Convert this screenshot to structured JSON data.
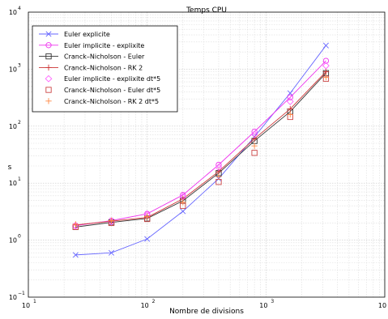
{
  "chart_data": {
    "type": "line",
    "title": "Temps CPU",
    "xlabel": "Nombre de divisions",
    "ylabel": "s",
    "x_scale": "log",
    "y_scale": "log",
    "xlim": [
      10,
      10000
    ],
    "ylim": [
      0.1,
      10000
    ],
    "grid": true,
    "legend_position": "top-left",
    "x_ticks": [
      {
        "base": "10",
        "exp": "1"
      },
      {
        "base": "10",
        "exp": "2"
      },
      {
        "base": "10",
        "exp": "3"
      },
      {
        "base": "10",
        "exp": "4"
      }
    ],
    "y_ticks": [
      {
        "base": "10",
        "exp": "−1"
      },
      {
        "base": "10",
        "exp": "0"
      },
      {
        "base": "10",
        "exp": "1"
      },
      {
        "base": "10",
        "exp": "2"
      },
      {
        "base": "10",
        "exp": "3"
      },
      {
        "base": "10",
        "exp": "4"
      }
    ],
    "x": [
      25,
      50,
      100,
      200,
      400,
      800,
      1600,
      3200
    ],
    "series": [
      {
        "name": "Euler explicite",
        "color": "#6666ff",
        "marker": "x",
        "line": true,
        "values": [
          0.55,
          0.6,
          1.05,
          3.2,
          12,
          65,
          380,
          2600
        ]
      },
      {
        "name": "Euler implicite - explixite",
        "color": "#ee33ee",
        "marker": "circle",
        "line": true,
        "values": [
          1.8,
          2.2,
          2.9,
          6.2,
          21,
          80,
          320,
          1400
        ]
      },
      {
        "name": "Cranck–Nicholson - Euler",
        "color": "#333333",
        "marker": "square",
        "line": true,
        "values": [
          1.7,
          2.05,
          2.4,
          4.9,
          15,
          55,
          180,
          850
        ]
      },
      {
        "name": "Cranck–Nicholson - RK 2",
        "color": "#cc3333",
        "marker": "plus",
        "line": true,
        "values": [
          1.85,
          2.15,
          2.5,
          5.3,
          16,
          60,
          200,
          900
        ]
      },
      {
        "name": "Euler implicite - explixite dt*5",
        "color": "#ff66ff",
        "marker": "diamond",
        "line": false,
        "values": [
          1.75,
          2.1,
          2.8,
          5.8,
          19,
          72,
          270,
          1150
        ]
      },
      {
        "name": "Cranck–Nicholson - Euler dt*5",
        "color": "#cc4444",
        "marker": "square",
        "line": false,
        "values": [
          1.7,
          2.0,
          2.35,
          4.0,
          10.5,
          34,
          145,
          680
        ]
      },
      {
        "name": "Cranck–Nicholson - RK 2 dt*5",
        "color": "#ff8844",
        "marker": "plus",
        "line": false,
        "values": [
          1.9,
          2.2,
          2.6,
          4.6,
          13,
          45,
          160,
          720
        ]
      }
    ]
  }
}
